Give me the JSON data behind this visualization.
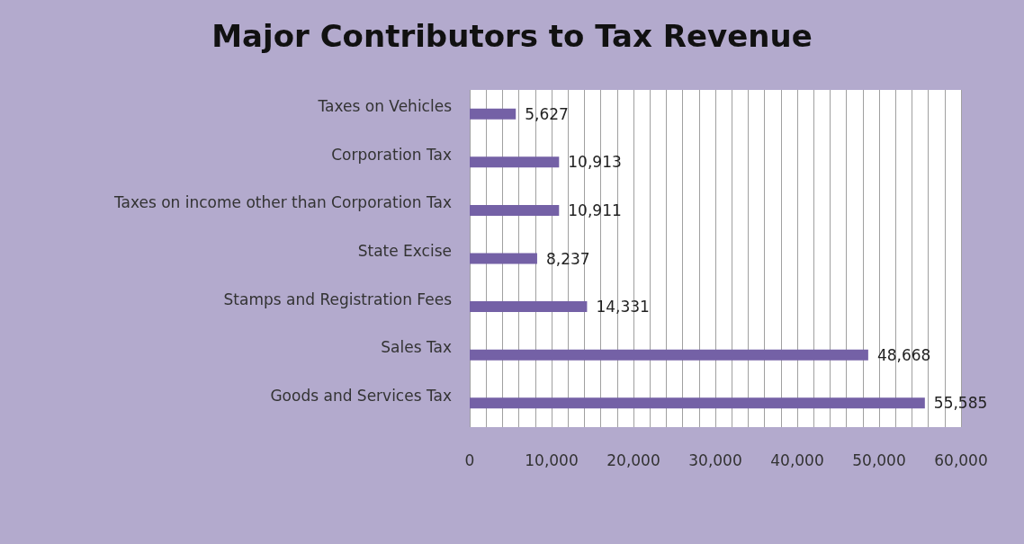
{
  "chart_data": {
    "type": "bar",
    "orientation": "horizontal",
    "title": "Major Contributors to Tax Revenue",
    "categories": [
      "Taxes on Vehicles",
      "Corporation Tax",
      "Taxes on income other than Corporation Tax",
      "State Excise",
      "Stamps and Registration Fees",
      "Sales Tax",
      "Goods and Services Tax"
    ],
    "values": [
      5627,
      10913,
      10911,
      8237,
      14331,
      48668,
      55585
    ],
    "color": "#7461a6",
    "value_labels": [
      "5,627",
      "10,913",
      "10,911",
      "8,237",
      "14,331",
      "48,668",
      "55,585"
    ],
    "xlim": [
      0,
      60000
    ],
    "xticks": [
      {
        "value": 0,
        "label": "0"
      },
      {
        "value": 2000,
        "label": null
      },
      {
        "value": 4000,
        "label": null
      },
      {
        "value": 6000,
        "label": null
      },
      {
        "value": 8000,
        "label": null
      },
      {
        "value": 10000,
        "label": "10,000"
      },
      {
        "value": 12000,
        "label": null
      },
      {
        "value": 14000,
        "label": null
      },
      {
        "value": 16000,
        "label": null
      },
      {
        "value": 18000,
        "label": null
      },
      {
        "value": 20000,
        "label": "20,000"
      },
      {
        "value": 22000,
        "label": null
      },
      {
        "value": 24000,
        "label": null
      },
      {
        "value": 26000,
        "label": null
      },
      {
        "value": 28000,
        "label": null
      },
      {
        "value": 30000,
        "label": "30,000"
      },
      {
        "value": 32000,
        "label": null
      },
      {
        "value": 34000,
        "label": null
      },
      {
        "value": 36000,
        "label": null
      },
      {
        "value": 38000,
        "label": null
      },
      {
        "value": 40000,
        "label": "40,000"
      },
      {
        "value": 42000,
        "label": null
      },
      {
        "value": 44000,
        "label": null
      },
      {
        "value": 46000,
        "label": null
      },
      {
        "value": 48000,
        "label": null
      },
      {
        "value": 50000,
        "label": "50,000"
      },
      {
        "value": 52000,
        "label": null
      },
      {
        "value": 54000,
        "label": null
      },
      {
        "value": 56000,
        "label": null
      },
      {
        "value": 58000,
        "label": null
      },
      {
        "value": 60000,
        "label": "60,000"
      }
    ],
    "grid": "x"
  }
}
